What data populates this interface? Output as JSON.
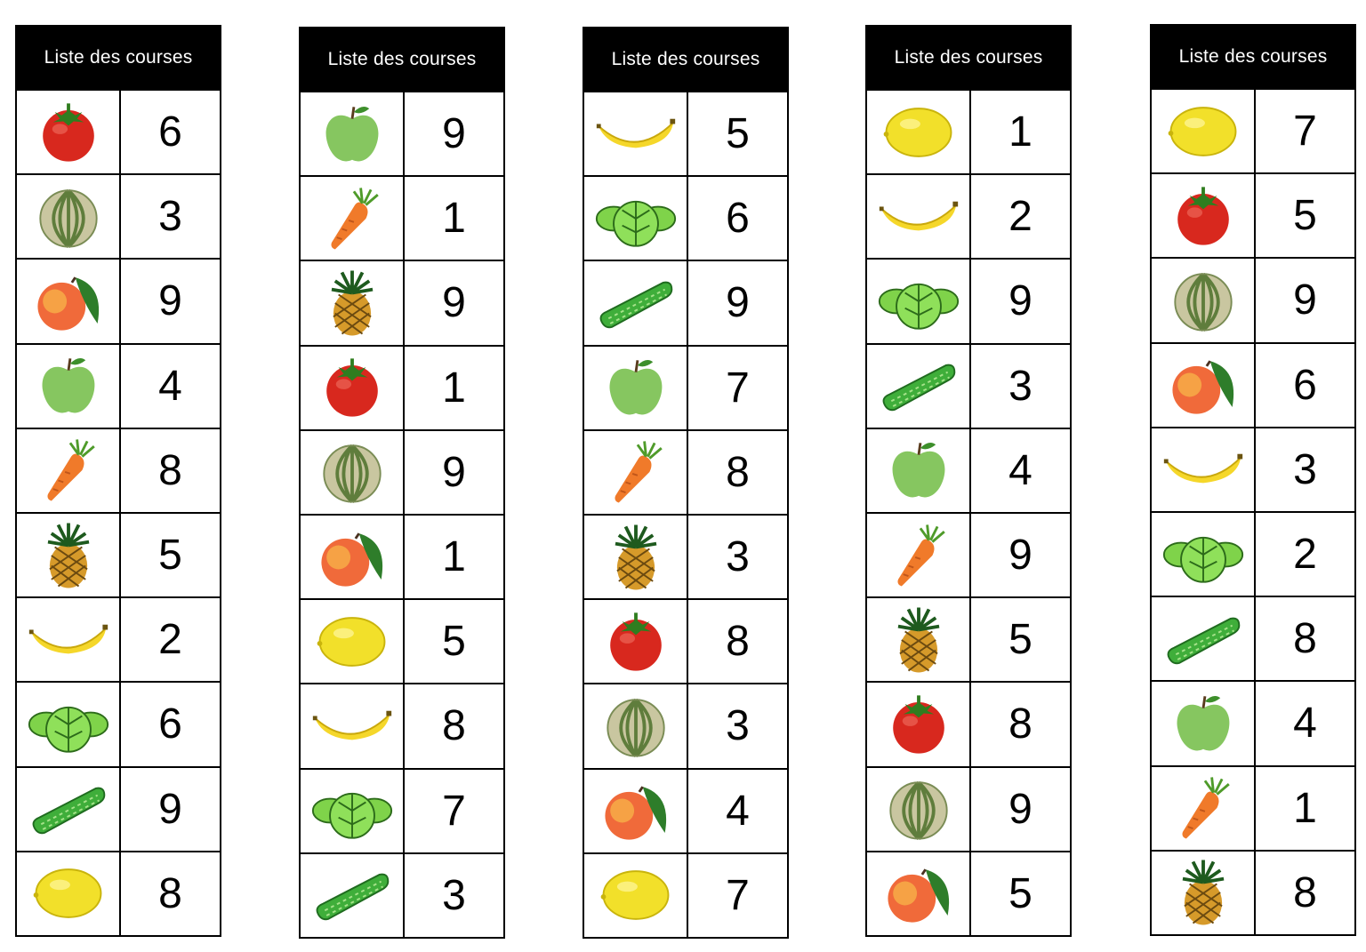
{
  "lists": [
    {
      "title": "Liste des courses",
      "items": [
        {
          "icon": "tomato-icon",
          "qty": "6"
        },
        {
          "icon": "melon-icon",
          "qty": "3"
        },
        {
          "icon": "peach-icon",
          "qty": "9"
        },
        {
          "icon": "apple-icon",
          "qty": "4"
        },
        {
          "icon": "carrot-icon",
          "qty": "8"
        },
        {
          "icon": "pineapple-icon",
          "qty": "5"
        },
        {
          "icon": "banana-icon",
          "qty": "2"
        },
        {
          "icon": "lettuce-icon",
          "qty": "6"
        },
        {
          "icon": "cucumber-icon",
          "qty": "9"
        },
        {
          "icon": "lemon-icon",
          "qty": "8"
        }
      ]
    },
    {
      "title": "Liste des courses",
      "items": [
        {
          "icon": "apple-icon",
          "qty": "9"
        },
        {
          "icon": "carrot-icon",
          "qty": "1"
        },
        {
          "icon": "pineapple-icon",
          "qty": "9"
        },
        {
          "icon": "tomato-icon",
          "qty": "1"
        },
        {
          "icon": "melon-icon",
          "qty": "9"
        },
        {
          "icon": "peach-icon",
          "qty": "1"
        },
        {
          "icon": "lemon-icon",
          "qty": "5"
        },
        {
          "icon": "banana-icon",
          "qty": "8"
        },
        {
          "icon": "lettuce-icon",
          "qty": "7"
        },
        {
          "icon": "cucumber-icon",
          "qty": "3"
        }
      ]
    },
    {
      "title": "Liste des courses",
      "items": [
        {
          "icon": "banana-icon",
          "qty": "5"
        },
        {
          "icon": "lettuce-icon",
          "qty": "6"
        },
        {
          "icon": "cucumber-icon",
          "qty": "9"
        },
        {
          "icon": "apple-icon",
          "qty": "7"
        },
        {
          "icon": "carrot-icon",
          "qty": "8"
        },
        {
          "icon": "pineapple-icon",
          "qty": "3"
        },
        {
          "icon": "tomato-icon",
          "qty": "8"
        },
        {
          "icon": "melon-icon",
          "qty": "3"
        },
        {
          "icon": "peach-icon",
          "qty": "4"
        },
        {
          "icon": "lemon-icon",
          "qty": "7"
        }
      ]
    },
    {
      "title": "Liste des courses",
      "items": [
        {
          "icon": "lemon-icon",
          "qty": "1"
        },
        {
          "icon": "banana-icon",
          "qty": "2"
        },
        {
          "icon": "lettuce-icon",
          "qty": "9"
        },
        {
          "icon": "cucumber-icon",
          "qty": "3"
        },
        {
          "icon": "apple-icon",
          "qty": "4"
        },
        {
          "icon": "carrot-icon",
          "qty": "9"
        },
        {
          "icon": "pineapple-icon",
          "qty": "5"
        },
        {
          "icon": "tomato-icon",
          "qty": "8"
        },
        {
          "icon": "melon-icon",
          "qty": "9"
        },
        {
          "icon": "peach-icon",
          "qty": "5"
        }
      ]
    },
    {
      "title": "Liste des courses",
      "items": [
        {
          "icon": "lemon-icon",
          "qty": "7"
        },
        {
          "icon": "tomato-icon",
          "qty": "5"
        },
        {
          "icon": "melon-icon",
          "qty": "9"
        },
        {
          "icon": "peach-icon",
          "qty": "6"
        },
        {
          "icon": "banana-icon",
          "qty": "3"
        },
        {
          "icon": "lettuce-icon",
          "qty": "2"
        },
        {
          "icon": "cucumber-icon",
          "qty": "8"
        },
        {
          "icon": "apple-icon",
          "qty": "4"
        },
        {
          "icon": "carrot-icon",
          "qty": "1"
        },
        {
          "icon": "pineapple-icon",
          "qty": "8"
        }
      ]
    }
  ]
}
